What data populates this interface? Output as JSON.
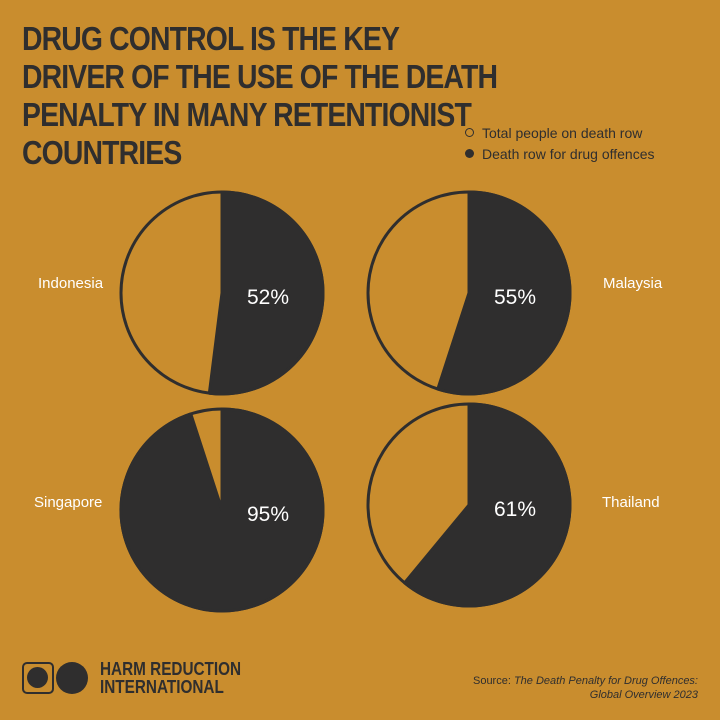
{
  "title": "DRUG CONTROL IS THE KEY DRIVER OF THE USE OF THE DEATH PENALTY IN MANY RETENTIONIST COUNTRIES",
  "legend": {
    "total": "Total people on death row",
    "drug": "Death row for drug offences"
  },
  "colors": {
    "background": "#c98d2e",
    "dark": "#2f2e2e",
    "label": "#ffffff"
  },
  "chart_data": [
    {
      "type": "pie",
      "country": "Indonesia",
      "drug_share_percent": 52,
      "label": "52%"
    },
    {
      "type": "pie",
      "country": "Malaysia",
      "drug_share_percent": 55,
      "label": "55%"
    },
    {
      "type": "pie",
      "country": "Singapore",
      "drug_share_percent": 95,
      "label": "95%"
    },
    {
      "type": "pie",
      "country": "Thailand",
      "drug_share_percent": 61,
      "label": "61%"
    }
  ],
  "footer": {
    "org_line1": "HARM REDUCTION",
    "org_line2": "INTERNATIONAL",
    "source_prefix": "Source: ",
    "source_title_1": "The Death Penalty for Drug Offences:",
    "source_title_2": "Global Overview 2023"
  }
}
